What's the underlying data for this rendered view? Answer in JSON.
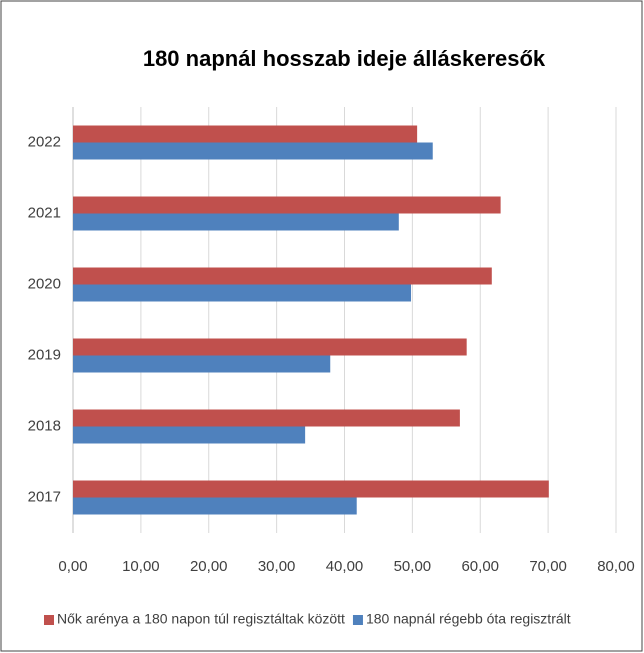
{
  "chart_data": {
    "type": "hbar",
    "title": "180 napnál hosszab ideje álláskeresők",
    "categories": [
      "2017",
      "2018",
      "2019",
      "2020",
      "2021",
      "2022"
    ],
    "series": [
      {
        "name": "Nők arénya a 180 napon túl regisztáltak között",
        "color": "#c0504d",
        "values": [
          70.1,
          57.0,
          58.0,
          61.7,
          63.0,
          50.7
        ]
      },
      {
        "name": "180 napnál régebb óta regisztrált",
        "color": "#4f81bd",
        "values": [
          41.8,
          34.2,
          37.9,
          49.8,
          48.0,
          53.0
        ]
      }
    ],
    "xlim": [
      0,
      80
    ],
    "xticks": [
      {
        "value": 0,
        "label": "0,00"
      },
      {
        "value": 10,
        "label": "10,00"
      },
      {
        "value": 20,
        "label": "20,00"
      },
      {
        "value": 30,
        "label": "30,00"
      },
      {
        "value": 40,
        "label": "40,00"
      },
      {
        "value": 50,
        "label": "50,00"
      },
      {
        "value": 60,
        "label": "60,00"
      },
      {
        "value": 70,
        "label": "70,00"
      },
      {
        "value": 80,
        "label": "80,00"
      }
    ],
    "grid": true,
    "legend": "bottom"
  }
}
